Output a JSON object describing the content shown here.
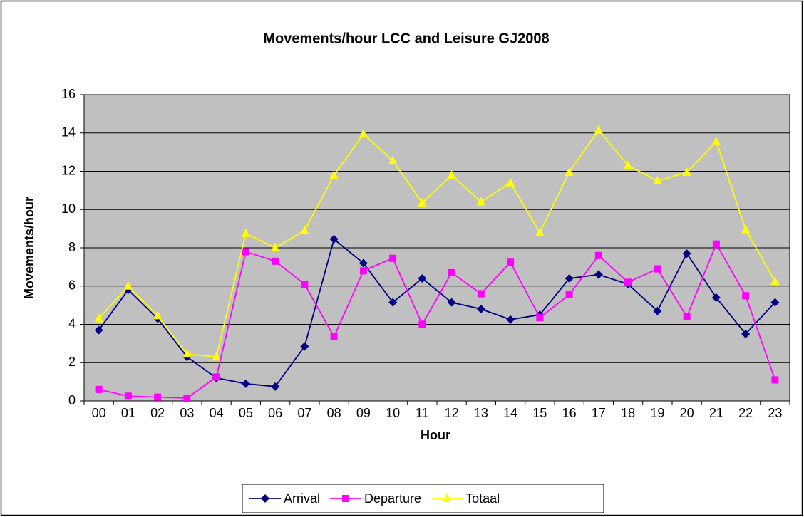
{
  "chart_data": {
    "type": "line",
    "title": "Movements/hour LCC and Leisure GJ2008",
    "x_label": "Hour",
    "y_label": "Movements/hour",
    "categories": [
      "00",
      "01",
      "02",
      "03",
      "04",
      "05",
      "06",
      "07",
      "08",
      "09",
      "10",
      "11",
      "12",
      "13",
      "14",
      "15",
      "16",
      "17",
      "18",
      "19",
      "20",
      "21",
      "22",
      "23"
    ],
    "series": [
      {
        "name": "Arrival",
        "color": "#000080",
        "marker": "diamond",
        "values": [
          3.7,
          5.8,
          4.3,
          2.3,
          1.2,
          0.9,
          0.75,
          2.85,
          8.45,
          7.2,
          5.15,
          6.4,
          5.15,
          4.8,
          4.25,
          4.5,
          6.4,
          6.6,
          6.1,
          4.7,
          7.7,
          5.4,
          3.5,
          5.15
        ]
      },
      {
        "name": "Departure",
        "color": "#ff00ff",
        "marker": "square",
        "values": [
          0.6,
          0.25,
          0.2,
          0.15,
          1.25,
          7.8,
          7.3,
          6.1,
          3.35,
          6.8,
          7.45,
          4.0,
          6.7,
          5.6,
          7.25,
          4.35,
          5.55,
          7.6,
          6.2,
          6.9,
          4.4,
          8.2,
          5.5,
          1.1
        ]
      },
      {
        "name": "Totaal",
        "color": "#ffff00",
        "marker": "triangle",
        "values": [
          4.3,
          6.0,
          4.45,
          2.45,
          2.3,
          8.75,
          8.0,
          8.9,
          11.8,
          13.95,
          12.55,
          10.35,
          11.8,
          10.4,
          11.4,
          8.8,
          11.95,
          14.15,
          12.3,
          11.5,
          11.95,
          13.55,
          8.95,
          6.25
        ]
      }
    ],
    "ylim": [
      0,
      16
    ],
    "yticks": [
      0,
      2,
      4,
      6,
      8,
      10,
      12,
      14,
      16
    ],
    "grid": true,
    "legend": "bottom",
    "plot_background": "#c0c0c0"
  }
}
